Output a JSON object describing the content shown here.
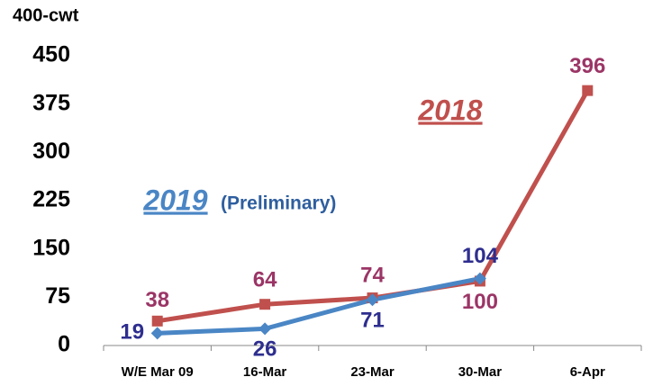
{
  "chart_data": {
    "type": "line",
    "y_axis_label": "400-cwt",
    "categories": [
      "W/E Mar 09",
      "16-Mar",
      "23-Mar",
      "30-Mar",
      "6-Apr"
    ],
    "series": [
      {
        "name": "2018",
        "color": "#c0504d",
        "label_color": "#9b3566",
        "marker": "square",
        "values": [
          38,
          64,
          74,
          100,
          396
        ]
      },
      {
        "name": "2019",
        "color": "#4a86c5",
        "label_color": "#2e2e8f",
        "marker": "diamond",
        "values": [
          19,
          26,
          71,
          104,
          null
        ]
      }
    ],
    "annotations": [
      "(Preliminary)"
    ],
    "ylim": [
      0,
      450
    ],
    "yticks": [
      0,
      75,
      150,
      225,
      300,
      375,
      450
    ]
  }
}
